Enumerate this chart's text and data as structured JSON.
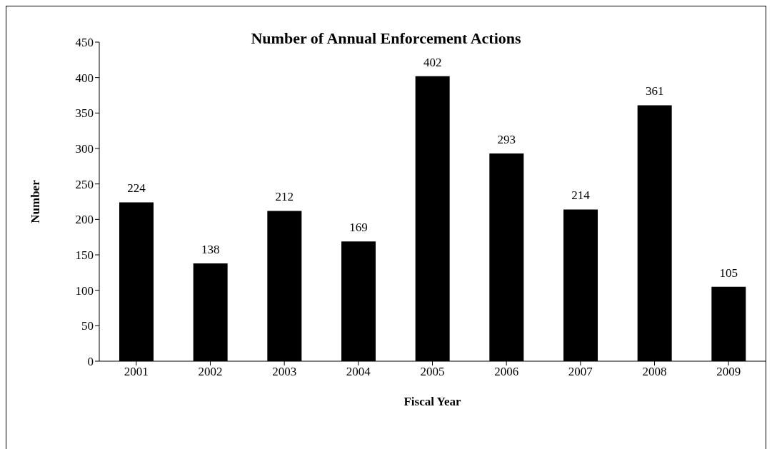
{
  "chart_data": {
    "type": "bar",
    "title": "Number of Annual Enforcement Actions",
    "xlabel": "Fiscal Year",
    "ylabel": "Number",
    "categories": [
      "2001",
      "2002",
      "2003",
      "2004",
      "2005",
      "2006",
      "2007",
      "2008",
      "2009"
    ],
    "values": [
      224,
      138,
      212,
      169,
      402,
      293,
      214,
      361,
      105
    ],
    "color": "#000000",
    "ylim": [
      0,
      450
    ],
    "yticks": [
      0,
      50,
      100,
      150,
      200,
      250,
      300,
      350,
      400,
      450
    ],
    "data_labels": true
  }
}
